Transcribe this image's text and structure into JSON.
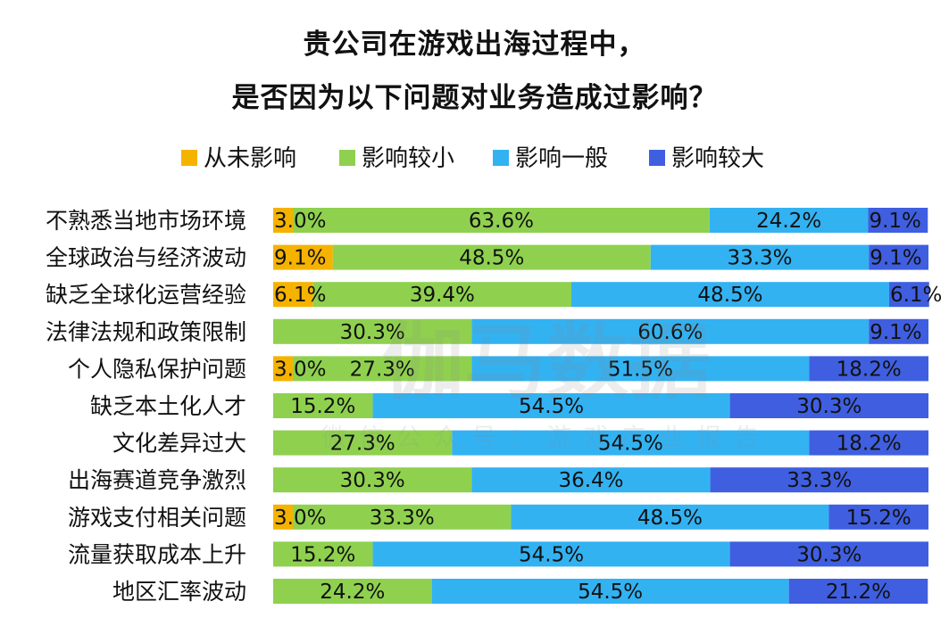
{
  "chart_data": {
    "type": "bar",
    "orientation": "horizontal",
    "stacked": true,
    "title_lines": [
      "贵公司在游戏出海过程中，",
      "是否因为以下问题对业务造成过影响？"
    ],
    "categories": [
      "不熟悉当地市场环境",
      "全球政治与经济波动",
      "缺乏全球化运营经验",
      "法律法规和政策限制",
      "个人隐私保护问题",
      "缺乏本土化人才",
      "文化差异过大",
      "出海赛道竞争激烈",
      "游戏支付相关问题",
      "流量获取成本上升",
      "地区汇率波动"
    ],
    "series": [
      {
        "name": "从未影响",
        "color": "#f5b300",
        "values": [
          3.0,
          9.1,
          6.1,
          0,
          3.0,
          0,
          0,
          0,
          3.0,
          0,
          0
        ]
      },
      {
        "name": "影响较小",
        "color": "#8fd14f",
        "values": [
          63.6,
          48.5,
          39.4,
          30.3,
          27.3,
          15.2,
          27.3,
          30.3,
          33.3,
          15.2,
          24.2
        ]
      },
      {
        "name": "影响一般",
        "color": "#33b2f2",
        "values": [
          24.2,
          33.3,
          48.5,
          60.6,
          51.5,
          54.5,
          54.5,
          36.4,
          48.5,
          54.5,
          54.5
        ]
      },
      {
        "name": "影响较大",
        "color": "#3f5fe0",
        "values": [
          9.1,
          9.1,
          6.1,
          9.1,
          18.2,
          30.3,
          18.2,
          33.3,
          15.2,
          30.3,
          21.2
        ]
      }
    ],
    "value_suffix": "%",
    "xlim": [
      0,
      100
    ],
    "legend_position": "top-center",
    "grid": false
  },
  "watermark": {
    "main": "伽马数据",
    "sub": "微信公众号：游戏产业报告"
  }
}
